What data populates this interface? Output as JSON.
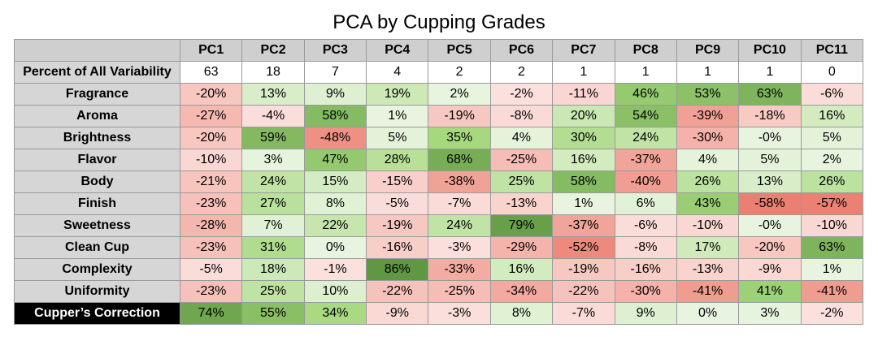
{
  "chart_data": {
    "type": "table",
    "title": "PCA by Cupping Grades",
    "columns": [
      "PC1",
      "PC2",
      "PC3",
      "PC4",
      "PC5",
      "PC6",
      "PC7",
      "PC8",
      "PC9",
      "PC10",
      "PC11"
    ],
    "variability_label": "Percent of All Variability",
    "variability": [
      "63",
      "18",
      "7",
      "4",
      "2",
      "2",
      "1",
      "1",
      "1",
      "1",
      "0"
    ],
    "rows": [
      {
        "label": "Fragrance",
        "values": [
          -20,
          13,
          9,
          19,
          2,
          -2,
          -11,
          46,
          53,
          63,
          -6
        ]
      },
      {
        "label": "Aroma",
        "values": [
          -27,
          -4,
          58,
          1,
          -19,
          -8,
          20,
          54,
          -39,
          -18,
          16
        ]
      },
      {
        "label": "Brightness",
        "values": [
          -20,
          59,
          -48,
          5,
          35,
          4,
          30,
          24,
          -30,
          "-0",
          5
        ]
      },
      {
        "label": "Flavor",
        "values": [
          -10,
          3,
          47,
          28,
          68,
          -25,
          16,
          -37,
          4,
          5,
          2
        ]
      },
      {
        "label": "Body",
        "values": [
          -21,
          24,
          15,
          -15,
          -38,
          25,
          58,
          -40,
          26,
          13,
          26
        ]
      },
      {
        "label": "Finish",
        "values": [
          -23,
          27,
          8,
          -5,
          -7,
          -13,
          1,
          6,
          43,
          -58,
          -57
        ]
      },
      {
        "label": "Sweetness",
        "values": [
          -28,
          7,
          22,
          -19,
          24,
          79,
          -37,
          -6,
          -10,
          "-0",
          -10
        ]
      },
      {
        "label": "Clean Cup",
        "values": [
          -23,
          31,
          0,
          -16,
          -3,
          -29,
          -52,
          -8,
          17,
          -20,
          63
        ]
      },
      {
        "label": "Complexity",
        "values": [
          -5,
          18,
          -1,
          86,
          -33,
          16,
          -19,
          -16,
          -13,
          -9,
          1
        ]
      },
      {
        "label": "Uniformity",
        "values": [
          -23,
          25,
          10,
          -22,
          -25,
          -34,
          -22,
          -30,
          -41,
          41,
          -41
        ]
      },
      {
        "label": "Cupper’s Correction",
        "values": [
          74,
          55,
          34,
          -9,
          -3,
          8,
          -7,
          9,
          0,
          3,
          -2
        ],
        "highlight": true
      }
    ],
    "colors": {
      "positive_low": "#e8f4e0",
      "positive_mid": "#a6d97e",
      "positive_high": "#5f9742",
      "negative_low": "#fbe1de",
      "negative_mid": "#f2a79d",
      "negative_high": "#ea7c6d"
    }
  }
}
